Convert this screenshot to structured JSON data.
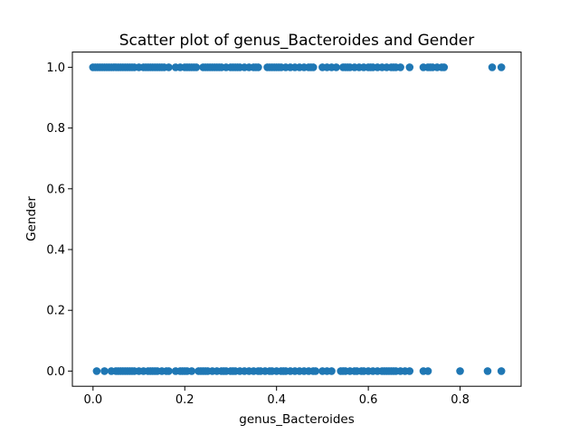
{
  "chart_data": {
    "type": "scatter",
    "title": "Scatter plot of genus_Bacteroides and Gender",
    "xlabel": "genus_Bacteroides",
    "ylabel": "Gender",
    "xlim": [
      -0.045,
      0.933
    ],
    "ylim": [
      -0.05,
      1.05
    ],
    "xticks": [
      0.0,
      0.2,
      0.4,
      0.6,
      0.8
    ],
    "xtick_labels": [
      "0.0",
      "0.2",
      "0.4",
      "0.6",
      "0.8"
    ],
    "yticks": [
      0.0,
      0.2,
      0.4,
      0.6,
      0.8,
      1.0
    ],
    "ytick_labels": [
      "0.0",
      "0.2",
      "0.4",
      "0.6",
      "0.8",
      "1.0"
    ],
    "grid": false,
    "color": "#1f77b4",
    "series": [
      {
        "x": [
          0.0,
          0.005,
          0.01,
          0.015,
          0.02,
          0.025,
          0.03,
          0.035,
          0.04,
          0.045,
          0.05,
          0.055,
          0.06,
          0.065,
          0.07,
          0.075,
          0.08,
          0.085,
          0.09,
          0.1,
          0.11,
          0.115,
          0.12,
          0.125,
          0.13,
          0.135,
          0.14,
          0.145,
          0.15,
          0.155,
          0.165,
          0.18,
          0.19,
          0.2,
          0.205,
          0.21,
          0.215,
          0.22,
          0.225,
          0.24,
          0.245,
          0.25,
          0.255,
          0.26,
          0.265,
          0.27,
          0.275,
          0.28,
          0.29,
          0.3,
          0.305,
          0.31,
          0.315,
          0.32,
          0.33,
          0.34,
          0.35,
          0.355,
          0.36,
          0.38,
          0.385,
          0.39,
          0.395,
          0.4,
          0.405,
          0.41,
          0.42,
          0.43,
          0.44,
          0.45,
          0.46,
          0.47,
          0.475,
          0.48,
          0.5,
          0.51,
          0.52,
          0.53,
          0.545,
          0.55,
          0.555,
          0.56,
          0.57,
          0.58,
          0.59,
          0.6,
          0.605,
          0.61,
          0.62,
          0.63,
          0.64,
          0.65,
          0.655,
          0.66,
          0.67,
          0.69,
          0.72,
          0.73,
          0.735,
          0.74,
          0.75,
          0.76,
          0.765,
          0.87,
          0.89
        ],
        "y": [
          1,
          1,
          1,
          1,
          1,
          1,
          1,
          1,
          1,
          1,
          1,
          1,
          1,
          1,
          1,
          1,
          1,
          1,
          1,
          1,
          1,
          1,
          1,
          1,
          1,
          1,
          1,
          1,
          1,
          1,
          1,
          1,
          1,
          1,
          1,
          1,
          1,
          1,
          1,
          1,
          1,
          1,
          1,
          1,
          1,
          1,
          1,
          1,
          1,
          1,
          1,
          1,
          1,
          1,
          1,
          1,
          1,
          1,
          1,
          1,
          1,
          1,
          1,
          1,
          1,
          1,
          1,
          1,
          1,
          1,
          1,
          1,
          1,
          1,
          1,
          1,
          1,
          1,
          1,
          1,
          1,
          1,
          1,
          1,
          1,
          1,
          1,
          1,
          1,
          1,
          1,
          1,
          1,
          1,
          1,
          1,
          1,
          1,
          1,
          1,
          1,
          1,
          1,
          1,
          1
        ]
      },
      {
        "x": [
          0.008,
          0.025,
          0.04,
          0.05,
          0.055,
          0.06,
          0.065,
          0.07,
          0.075,
          0.08,
          0.085,
          0.09,
          0.1,
          0.11,
          0.12,
          0.125,
          0.13,
          0.135,
          0.14,
          0.15,
          0.16,
          0.165,
          0.18,
          0.19,
          0.195,
          0.2,
          0.205,
          0.215,
          0.23,
          0.235,
          0.24,
          0.245,
          0.25,
          0.26,
          0.27,
          0.28,
          0.285,
          0.29,
          0.3,
          0.305,
          0.31,
          0.32,
          0.33,
          0.34,
          0.35,
          0.36,
          0.365,
          0.375,
          0.385,
          0.39,
          0.4,
          0.41,
          0.415,
          0.42,
          0.43,
          0.44,
          0.45,
          0.46,
          0.47,
          0.48,
          0.485,
          0.5,
          0.51,
          0.52,
          0.54,
          0.545,
          0.55,
          0.56,
          0.57,
          0.575,
          0.585,
          0.59,
          0.6,
          0.61,
          0.62,
          0.63,
          0.635,
          0.64,
          0.645,
          0.65,
          0.655,
          0.66,
          0.67,
          0.68,
          0.69,
          0.72,
          0.73,
          0.8,
          0.86,
          0.89
        ],
        "y": [
          0,
          0,
          0,
          0,
          0,
          0,
          0,
          0,
          0,
          0,
          0,
          0,
          0,
          0,
          0,
          0,
          0,
          0,
          0,
          0,
          0,
          0,
          0,
          0,
          0,
          0,
          0,
          0,
          0,
          0,
          0,
          0,
          0,
          0,
          0,
          0,
          0,
          0,
          0,
          0,
          0,
          0,
          0,
          0,
          0,
          0,
          0,
          0,
          0,
          0,
          0,
          0,
          0,
          0,
          0,
          0,
          0,
          0,
          0,
          0,
          0,
          0,
          0,
          0,
          0,
          0,
          0,
          0,
          0,
          0,
          0,
          0,
          0,
          0,
          0,
          0,
          0,
          0,
          0,
          0,
          0,
          0,
          0,
          0,
          0,
          0,
          0,
          0,
          0,
          0
        ]
      }
    ]
  }
}
